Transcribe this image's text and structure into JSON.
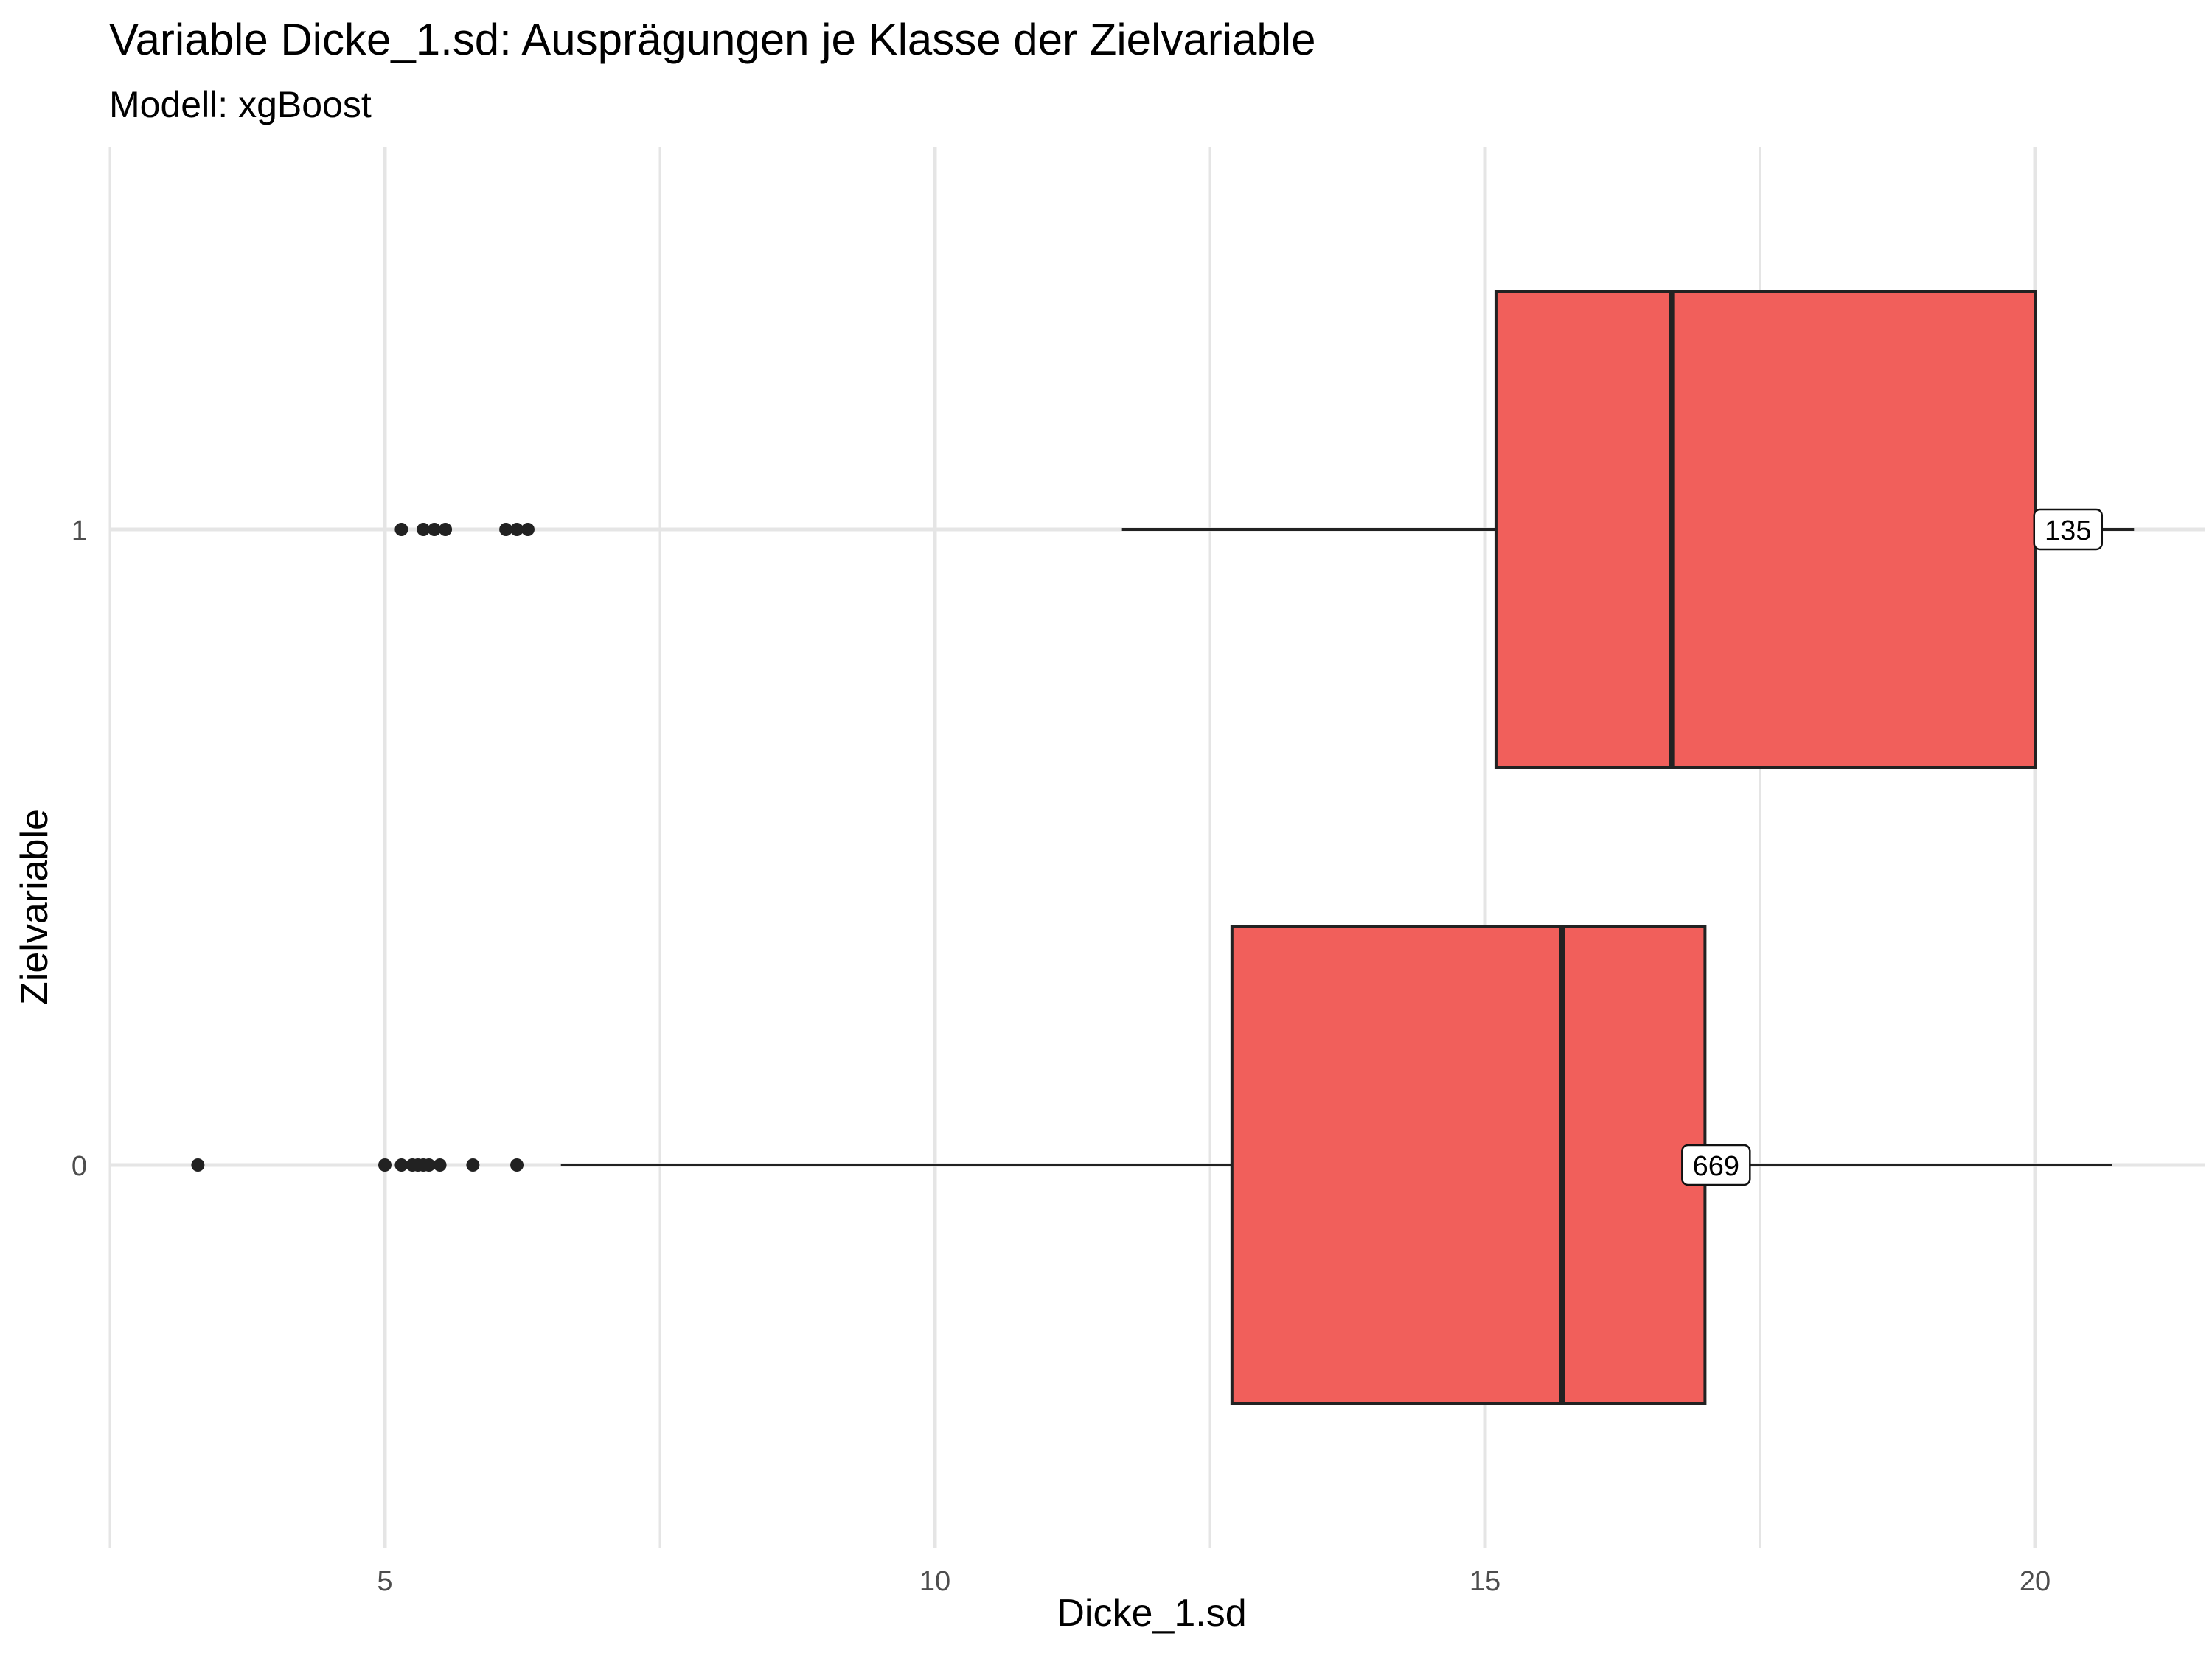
{
  "title": "Variable Dicke_1.sd: Ausprägungen je Klasse der Zielvariable",
  "subtitle": "Modell: xgBoost",
  "chart_data": {
    "type": "boxplot",
    "orientation": "horizontal",
    "title": "Variable Dicke_1.sd: Ausprägungen je Klasse der Zielvariable",
    "subtitle": "Modell: xgBoost",
    "xlabel": "Dicke_1.sd",
    "ylabel": "Zielvariable",
    "xlim": [
      2.5,
      21.6
    ],
    "x_ticks": [
      5,
      10,
      15,
      20
    ],
    "x_tick_labels": [
      "5",
      "10",
      "15",
      "20"
    ],
    "categories": [
      "0",
      "1"
    ],
    "grid": true,
    "fill_color": "#F15F5B",
    "outline_color": "#222222",
    "boxes": [
      {
        "category": "0",
        "whisker_low": 6.6,
        "q1": 12.7,
        "median": 15.7,
        "q3": 17.0,
        "whisker_high": 20.7,
        "outliers": [
          3.3,
          5.0,
          5.15,
          5.25,
          5.3,
          5.35,
          5.4,
          5.5,
          5.8,
          6.2
        ],
        "count_label": "669",
        "count_label_x": 17.1
      },
      {
        "category": "1",
        "whisker_low": 11.7,
        "q1": 15.1,
        "median": 16.7,
        "q3": 20.0,
        "whisker_high": 20.9,
        "outliers": [
          5.15,
          5.35,
          5.45,
          5.55,
          6.1,
          6.2,
          6.3
        ],
        "count_label": "135",
        "count_label_x": 20.3
      }
    ]
  }
}
